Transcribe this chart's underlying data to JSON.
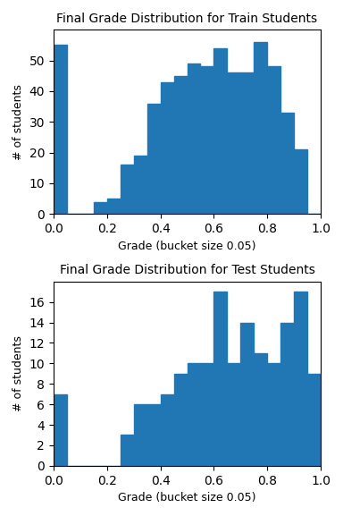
{
  "train_title": "Final Grade Distribution for Train Students",
  "test_title": "Final Grade Distribution for Test Students",
  "xlabel": "Grade (bucket size 0.05)",
  "ylabel": "# of students",
  "bar_color": "#2077b4",
  "bin_edges": [
    0.0,
    0.05,
    0.1,
    0.15,
    0.2,
    0.25,
    0.3,
    0.35,
    0.4,
    0.45,
    0.5,
    0.55,
    0.6,
    0.65,
    0.7,
    0.75,
    0.8,
    0.85,
    0.9,
    0.95,
    1.0
  ],
  "train_counts": [
    55,
    0,
    0,
    4,
    5,
    16,
    19,
    36,
    43,
    45,
    49,
    48,
    54,
    46,
    46,
    56,
    48,
    33,
    21,
    0
  ],
  "test_counts": [
    7,
    0,
    0,
    0,
    0,
    3,
    6,
    6,
    7,
    9,
    10,
    10,
    17,
    10,
    14,
    11,
    10,
    14,
    17,
    9
  ],
  "train_ylim": [
    0,
    60
  ],
  "test_ylim": [
    0,
    18
  ],
  "train_yticks": [
    0,
    10,
    20,
    30,
    40,
    50
  ],
  "test_yticks": [
    0,
    2,
    4,
    6,
    8,
    10,
    12,
    14,
    16
  ],
  "xticks": [
    0.0,
    0.2,
    0.4,
    0.6,
    0.8,
    1.0
  ],
  "title_fontsize": 10,
  "label_fontsize": 9,
  "figsize": [
    3.84,
    5.77
  ],
  "dpi": 100
}
